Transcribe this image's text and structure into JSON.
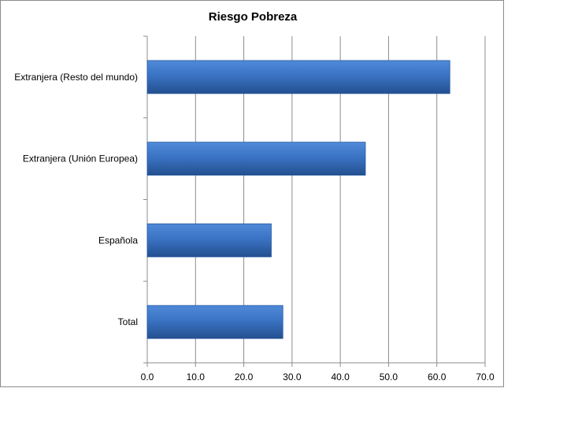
{
  "chart_data": {
    "type": "bar",
    "orientation": "horizontal",
    "title": "Riesgo Pobreza",
    "categories": [
      "Extranjera (Resto del mundo)",
      "Extranjera (Unión Europea)",
      "Española",
      "Total"
    ],
    "values": [
      62.7,
      45.2,
      25.7,
      28.1
    ],
    "xlim": [
      0,
      70
    ],
    "xticks": [
      "0.0",
      "10.0",
      "20.0",
      "30.0",
      "40.0",
      "50.0",
      "60.0",
      "70.0"
    ],
    "grid": "vertical",
    "legend": "none",
    "bar_color": "#3a6fbe"
  }
}
